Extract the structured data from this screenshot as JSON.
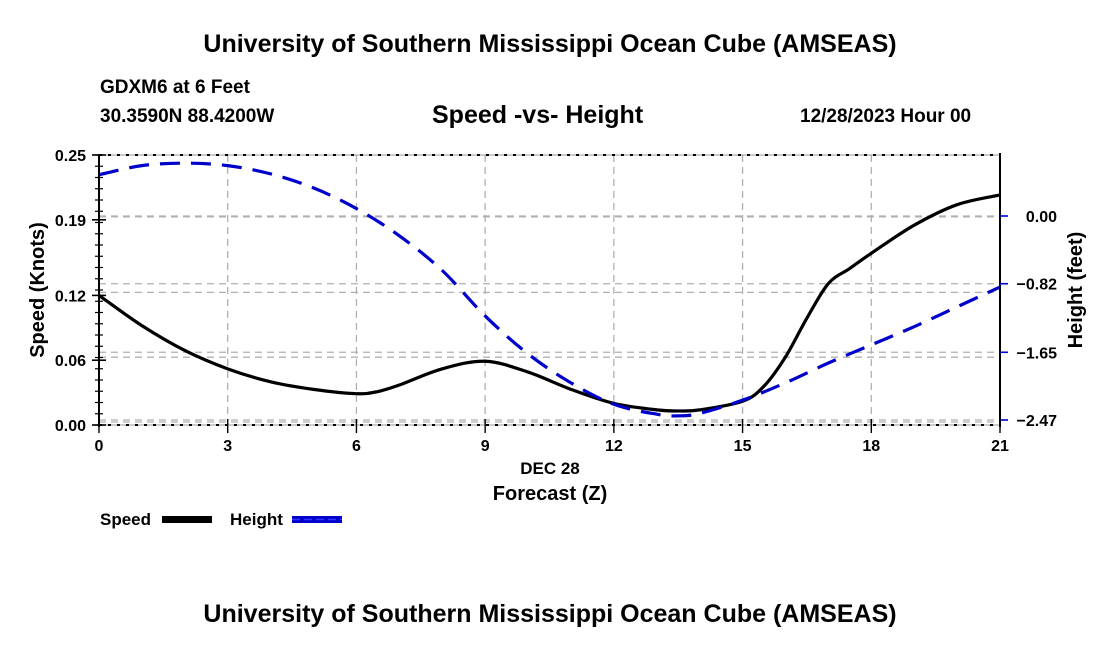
{
  "header": {
    "title": "University of Southern Mississippi Ocean Cube (AMSEAS)",
    "station": "GDXM6 at 6 Feet",
    "coords": "30.3590N  88.4200W",
    "subtitle": "Speed -vs- Height",
    "datetime": "12/28/2023 Hour 00"
  },
  "footer": {
    "title": "University of Southern Mississippi Ocean Cube (AMSEAS)"
  },
  "chart_data": {
    "type": "line",
    "title": "Speed -vs- Height",
    "xlabel": "Forecast (Z)",
    "xlabel_date": "DEC 28",
    "ylabel": "Speed (Knots)",
    "y2label": "Height (feet)",
    "xlim": [
      0,
      21
    ],
    "ylim": [
      0,
      0.25
    ],
    "y2lim": [
      -2.47,
      0.76
    ],
    "x_ticks": [
      0,
      3,
      6,
      9,
      12,
      15,
      18,
      21
    ],
    "x_tick_labels": [
      "0",
      "3",
      "6",
      "9",
      "12",
      "15",
      "18",
      "21"
    ],
    "y_ticks": [
      0.0,
      0.06,
      0.12,
      0.19,
      0.25
    ],
    "y_tick_labels": [
      "0.00",
      "0.06",
      "0.12",
      "0.19",
      "0.25"
    ],
    "y2_ticks": [
      0.0,
      -0.82,
      -1.65,
      -2.47
    ],
    "y2_tick_labels": [
      "0.00",
      "−0.82",
      "−1.65",
      "−2.47"
    ],
    "grid": true,
    "legend_position": "bottom-left",
    "colors": {
      "speed": "#000000",
      "height": "#0000cc",
      "grid": "#b0b0b0"
    },
    "series": [
      {
        "name": "Speed",
        "axis": "left",
        "style": "solid",
        "x": [
          0,
          1,
          2,
          3,
          4,
          5,
          6,
          6.5,
          7,
          8,
          9,
          10,
          11,
          12,
          13,
          13.5,
          14,
          15,
          15.5,
          16,
          16.5,
          17,
          17.5,
          18,
          19,
          20,
          21
        ],
        "values": [
          0.12,
          0.092,
          0.069,
          0.052,
          0.04,
          0.033,
          0.029,
          0.031,
          0.037,
          0.052,
          0.059,
          0.049,
          0.033,
          0.02,
          0.014,
          0.013,
          0.014,
          0.022,
          0.036,
          0.063,
          0.099,
          0.131,
          0.145,
          0.159,
          0.185,
          0.204,
          0.213
        ]
      },
      {
        "name": "Height",
        "axis": "right",
        "style": "dashed",
        "x": [
          0,
          1,
          2,
          3,
          4,
          5,
          6,
          7,
          8,
          9,
          10,
          11,
          12,
          13,
          13.5,
          14,
          15,
          16,
          17,
          18,
          19,
          20,
          21
        ],
        "values": [
          0.5,
          0.61,
          0.64,
          0.61,
          0.51,
          0.34,
          0.09,
          -0.24,
          -0.66,
          -1.21,
          -1.67,
          -2.02,
          -2.28,
          -2.4,
          -2.42,
          -2.39,
          -2.23,
          -2.02,
          -1.78,
          -1.56,
          -1.34,
          -1.1,
          -0.86
        ]
      }
    ]
  }
}
